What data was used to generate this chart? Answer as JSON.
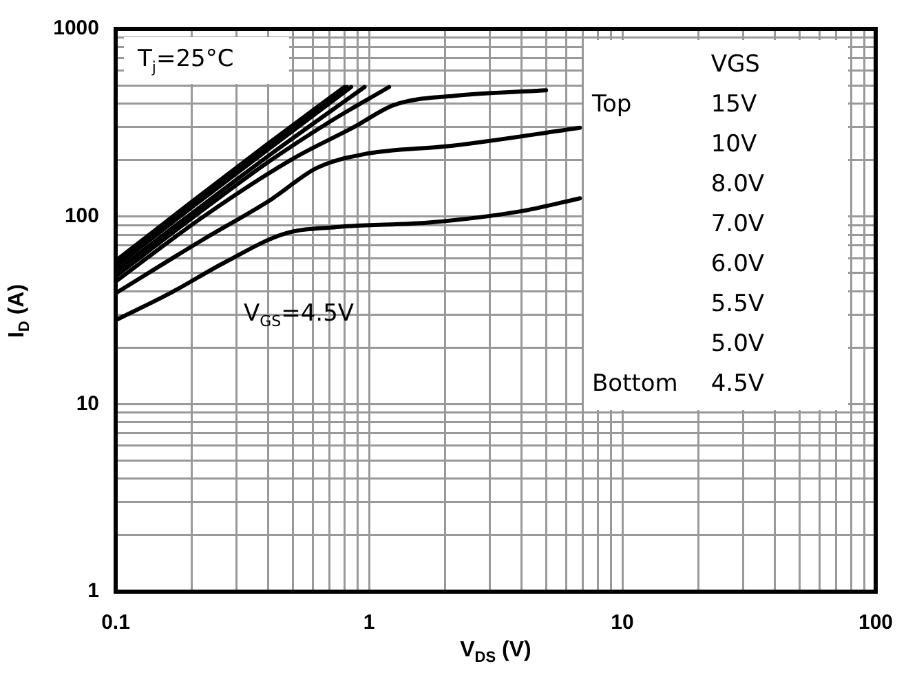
{
  "chart_data": {
    "type": "line",
    "xlabel": "V$_{DS}$ (V)",
    "ylabel": "I$_{D}$ (A)",
    "log": "xy",
    "grid": true,
    "legend": "right",
    "legend_title": "VGS",
    "marker": "none",
    "line_style": "solid",
    "xlim": [
      0.1,
      100
    ],
    "ylim": [
      1,
      1000
    ],
    "xticks": [
      0.1,
      {
        "value": 0.2,
        "label": null
      },
      {
        "value": 0.3,
        "label": null
      },
      {
        "value": 0.4,
        "label": null
      },
      {
        "value": 0.5,
        "label": null
      },
      {
        "value": 0.6,
        "label": null
      },
      {
        "value": 0.7,
        "label": null
      },
      {
        "value": 0.8,
        "label": null
      },
      {
        "value": 0.9,
        "label": null
      },
      1,
      {
        "value": 2,
        "label": null
      },
      {
        "value": 3,
        "label": null
      },
      {
        "value": 4,
        "label": null
      },
      {
        "value": 5,
        "label": null
      },
      {
        "value": 6,
        "label": null
      },
      {
        "value": 7,
        "label": null
      },
      {
        "value": 8,
        "label": null
      },
      {
        "value": 9,
        "label": null
      },
      10,
      {
        "value": 20,
        "label": null
      },
      {
        "value": 30,
        "label": null
      },
      {
        "value": 40,
        "label": null
      },
      {
        "value": 50,
        "label": null
      },
      {
        "value": 60,
        "label": null
      },
      {
        "value": 70,
        "label": null
      },
      {
        "value": 80,
        "label": null
      },
      {
        "value": 90,
        "label": null
      },
      100
    ],
    "yticks": [
      1,
      {
        "value": 2,
        "label": null
      },
      {
        "value": 3,
        "label": null
      },
      {
        "value": 4,
        "label": null
      },
      {
        "value": 5,
        "label": null
      },
      {
        "value": 6,
        "label": null
      },
      {
        "value": 7,
        "label": null
      },
      {
        "value": 8,
        "label": null
      },
      {
        "value": 9,
        "label": null
      },
      10,
      {
        "value": 20,
        "label": null
      },
      {
        "value": 30,
        "label": null
      },
      {
        "value": 40,
        "label": null
      },
      {
        "value": 50,
        "label": null
      },
      {
        "value": 60,
        "label": null
      },
      {
        "value": 70,
        "label": null
      },
      {
        "value": 80,
        "label": null
      },
      {
        "value": 90,
        "label": null
      },
      100,
      {
        "value": 200,
        "label": null
      },
      {
        "value": 300,
        "label": null
      },
      {
        "value": 400,
        "label": null
      },
      {
        "value": 500,
        "label": null
      },
      {
        "value": 600,
        "label": null
      },
      {
        "value": 700,
        "label": null
      },
      {
        "value": 800,
        "label": null
      },
      {
        "value": 900,
        "label": null
      },
      1000
    ],
    "series": [
      {
        "name": "15V",
        "color": "#000000",
        "x": [
          0.1,
          0.2,
          0.4,
          0.8
        ],
        "values": [
          58,
          120,
          245,
          490
        ]
      },
      {
        "name": "10V",
        "color": "#000000",
        "x": [
          0.1,
          0.2,
          0.4,
          0.82
        ],
        "values": [
          56,
          116,
          235,
          490
        ]
      },
      {
        "name": "8.0V",
        "color": "#000000",
        "x": [
          0.1,
          0.2,
          0.4,
          0.85
        ],
        "values": [
          54,
          112,
          228,
          490
        ]
      },
      {
        "name": "7.0V",
        "color": "#000000",
        "x": [
          0.1,
          0.2,
          0.4,
          0.96
        ],
        "values": [
          51,
          104,
          210,
          490
        ]
      },
      {
        "name": "6.0V",
        "color": "#000000",
        "x": [
          0.1,
          0.2,
          0.4,
          0.7,
          1.2
        ],
        "values": [
          48,
          98,
          195,
          320,
          490
        ]
      },
      {
        "name": "5.5V",
        "color": "#000000",
        "x": [
          0.1,
          0.22,
          0.5,
          0.87,
          1.26,
          2.17,
          5.0
        ],
        "values": [
          45,
          99,
          203,
          299,
          394,
          440,
          471
        ]
      },
      {
        "name": "5.0V",
        "color": "#000000",
        "x": [
          0.1,
          0.22,
          0.41,
          0.62,
          0.94,
          2.17,
          6.8
        ],
        "values": [
          39,
          75,
          123,
          181,
          214,
          239,
          297
        ]
      },
      {
        "name": "4.5V",
        "color": "#000000",
        "x": [
          0.1,
          0.164,
          0.27,
          0.465,
          0.765,
          1.75,
          4.04,
          6.8
        ],
        "values": [
          28,
          39,
          57,
          81,
          88,
          93,
          107,
          125
        ]
      }
    ],
    "annotations": [
      "T$_{j}$=25°C",
      "Top",
      "Bottom",
      "V$_{GS}$=4.5V"
    ]
  }
}
